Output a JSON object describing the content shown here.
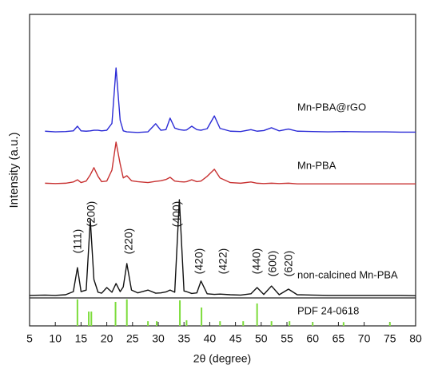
{
  "chart_data": {
    "type": "line",
    "xlabel": "2θ (degree)",
    "ylabel": "Intensity (a.u.)",
    "xlim": [
      5,
      80
    ],
    "xticks": [
      5,
      10,
      15,
      20,
      25,
      30,
      35,
      40,
      45,
      50,
      55,
      60,
      65,
      70,
      75,
      80
    ],
    "ylim": [
      0,
      100
    ],
    "x": [
      5,
      8,
      10,
      12,
      13.5,
      14.3,
      15,
      16,
      16.8,
      17.5,
      18.3,
      19,
      20,
      21,
      21.8,
      22.6,
      23.2,
      23.9,
      24.8,
      26,
      28,
      29.5,
      30.5,
      31.5,
      32.3,
      33.2,
      34.1,
      35,
      35.5,
      36.5,
      37.5,
      38.3,
      39.5,
      40.9,
      42,
      44,
      46,
      48,
      49.2,
      50.5,
      52,
      53.5,
      55.3,
      57,
      60,
      63,
      66,
      70,
      74,
      77,
      80
    ],
    "series": [
      {
        "name": "Mn-PBA@rGO",
        "color": "#2b2bd6",
        "values": [
          null,
          62.5,
          62.3,
          62.4,
          62.6,
          64.1,
          62.6,
          62.5,
          62.6,
          62.8,
          62.8,
          62.6,
          62.8,
          65,
          82.8,
          66,
          62.6,
          62.3,
          62.2,
          62.1,
          62.3,
          64.9,
          62.8,
          63,
          66.7,
          63.5,
          63,
          62.8,
          62.9,
          64.1,
          63,
          62.8,
          63.3,
          67.4,
          63.4,
          62.5,
          62.4,
          63,
          62.5,
          62.7,
          63.6,
          62.6,
          63.2,
          62.5,
          62.4,
          62.3,
          62.4,
          62.3,
          62.3,
          62.2,
          62.2
        ]
      },
      {
        "name": "Mn-PBA",
        "color": "#c83232",
        "values": [
          null,
          45.8,
          45.7,
          45.8,
          46.2,
          46.9,
          46,
          46.5,
          48.5,
          50.8,
          48,
          46.3,
          46.5,
          50,
          59,
          52,
          47.5,
          48.2,
          46.6,
          46.3,
          46,
          46.4,
          46.6,
          47,
          47.7,
          46.5,
          46.3,
          46.2,
          46.3,
          46.9,
          46.3,
          46.5,
          48,
          50.3,
          47.5,
          46,
          45.8,
          46.2,
          45.8,
          45.7,
          45.8,
          45.7,
          45.8,
          45.6,
          45.6,
          45.6,
          45.6,
          45.6,
          45.6,
          45.6,
          45.6
        ]
      },
      {
        "name": "non-calcined Mn-PBA",
        "color": "#111111",
        "values": [
          9.8,
          9.9,
          9.8,
          10,
          11,
          18.7,
          11,
          11.5,
          34.1,
          14.9,
          10.8,
          10.5,
          12.3,
          10.8,
          13.6,
          11,
          12.5,
          20,
          11.5,
          10.6,
          11.5,
          10.5,
          10.6,
          10.9,
          11.5,
          10.8,
          40.5,
          11.2,
          11,
          10.4,
          10.6,
          14.4,
          10.3,
          10.1,
          10.2,
          10,
          9.9,
          10.3,
          12.3,
          10.1,
          12.8,
          10,
          11.8,
          10,
          9.9,
          9.8,
          9.8,
          9.8,
          9.8,
          9.8,
          9.7
        ]
      }
    ],
    "reference": {
      "name": "PDF 24-0618",
      "color": "#7ddc3c",
      "x": [
        14.3,
        16.5,
        17,
        21.7,
        23.9,
        28,
        29.7,
        34.2,
        35.5,
        38.4,
        42,
        46.5,
        49.2,
        52,
        55.5,
        60,
        66,
        75
      ],
      "values": [
        8.5,
        4.6,
        4.6,
        7.7,
        8.5,
        1.5,
        1.5,
        8.2,
        1.8,
        5.9,
        1.5,
        1.5,
        7.2,
        1.5,
        1.5,
        1.2,
        1.2,
        1.2
      ]
    },
    "annotations": [
      "(111)",
      "(200)",
      "(220)",
      "(400)",
      "(420)",
      "(422)",
      "(440)",
      "(600)",
      "(620)"
    ]
  }
}
